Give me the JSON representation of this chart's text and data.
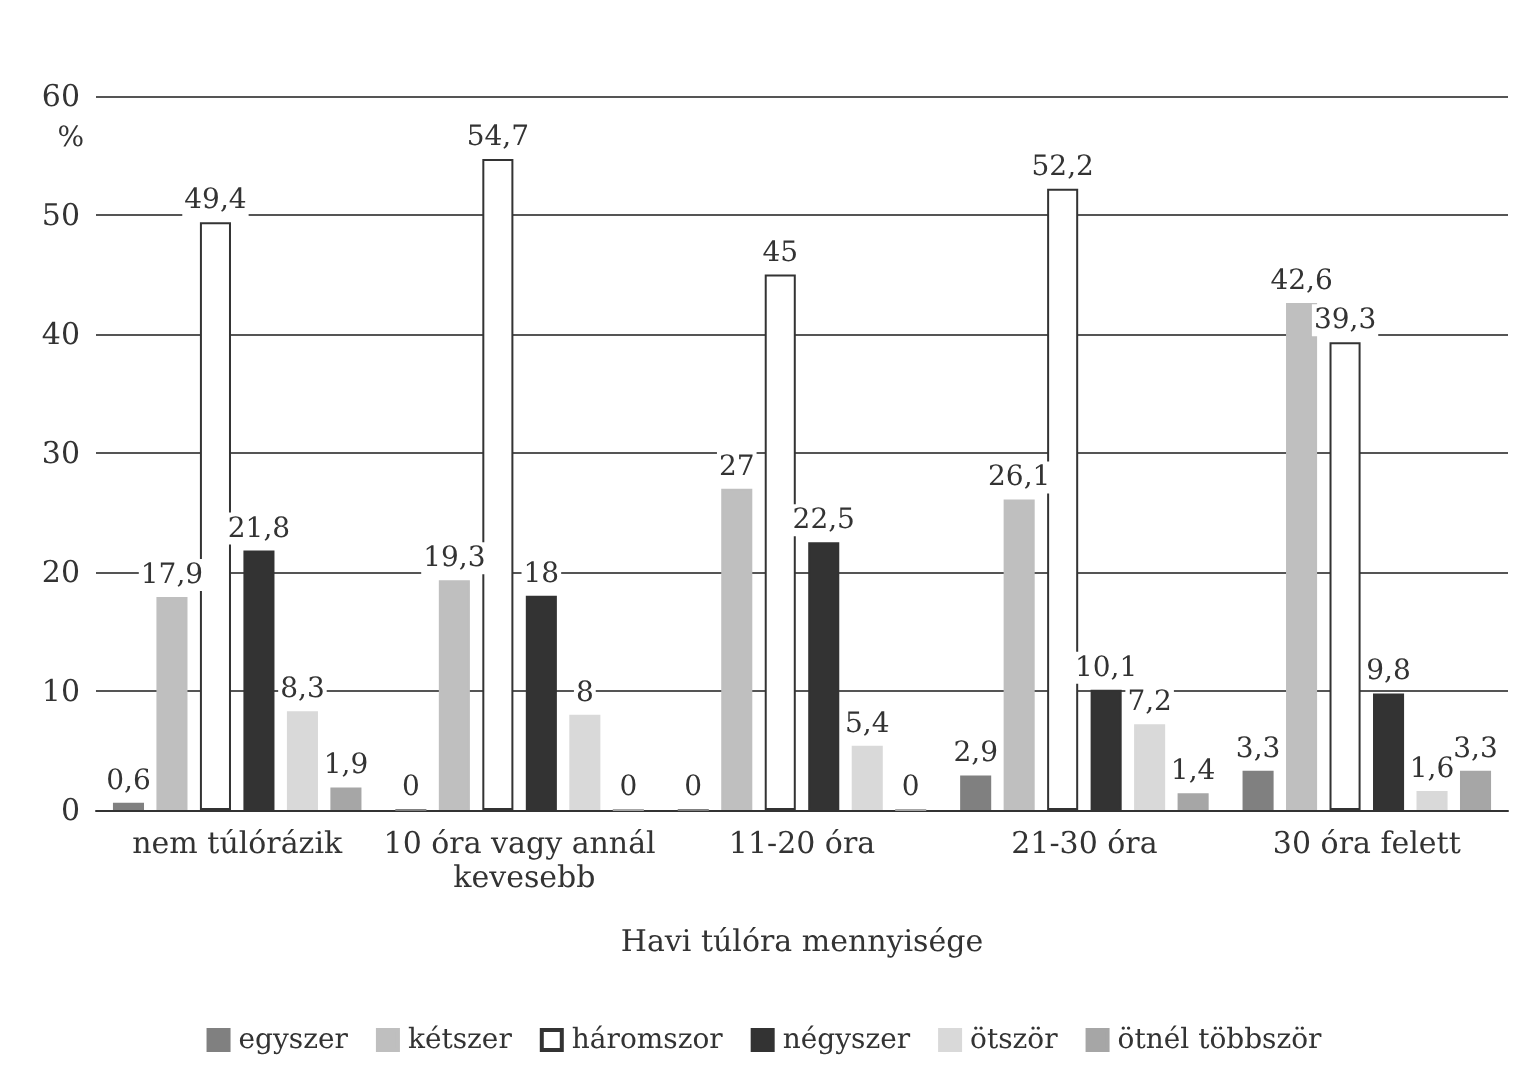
{
  "chart_data": {
    "type": "bar",
    "xlabel": "Havi túlóra mennyisége",
    "ylabel": "%",
    "categories": [
      "nem túlórázik",
      "10 óra vagy annál kevesebb",
      "11-20 óra",
      "21-30 óra",
      "30 óra felett"
    ],
    "series": [
      {
        "name": "egyszer",
        "color": "#808080",
        "values": [
          0.6,
          0,
          0,
          2.9,
          3.3
        ],
        "value_labels": [
          "0,6",
          "0",
          "0",
          "2,9",
          "3,3"
        ]
      },
      {
        "name": "kétszer",
        "color": "#bfbfbf",
        "values": [
          17.9,
          19.3,
          27,
          26.1,
          42.6
        ],
        "value_labels": [
          "17,9",
          "19,3",
          "27",
          "26,1",
          "42,6"
        ]
      },
      {
        "name": "háromszor",
        "color": "#ffffff",
        "values": [
          49.4,
          54.7,
          45,
          52.2,
          39.3
        ],
        "value_labels": [
          "49,4",
          "54,7",
          "45",
          "52,2",
          "39,3"
        ]
      },
      {
        "name": "négyszer",
        "color": "#333333",
        "values": [
          21.8,
          18,
          22.5,
          10.1,
          9.8
        ],
        "value_labels": [
          "21,8",
          "18",
          "22,5",
          "10,1",
          "9,8"
        ]
      },
      {
        "name": "ötször",
        "color": "#d9d9d9",
        "values": [
          8.3,
          8,
          5.4,
          7.2,
          1.6
        ],
        "value_labels": [
          "8,3",
          "8",
          "5,4",
          "7,2",
          "1,6"
        ]
      },
      {
        "name": "ötnél többször",
        "color": "#a6a6a6",
        "values": [
          1.9,
          0,
          0,
          1.4,
          3.3
        ],
        "value_labels": [
          "1,9",
          "0",
          "0",
          "1,4",
          "3,3"
        ]
      }
    ],
    "ylim": [
      0,
      60
    ],
    "yticks": [
      0,
      10,
      20,
      30,
      40,
      50,
      60
    ],
    "grid": "y",
    "legend": "bottom"
  }
}
